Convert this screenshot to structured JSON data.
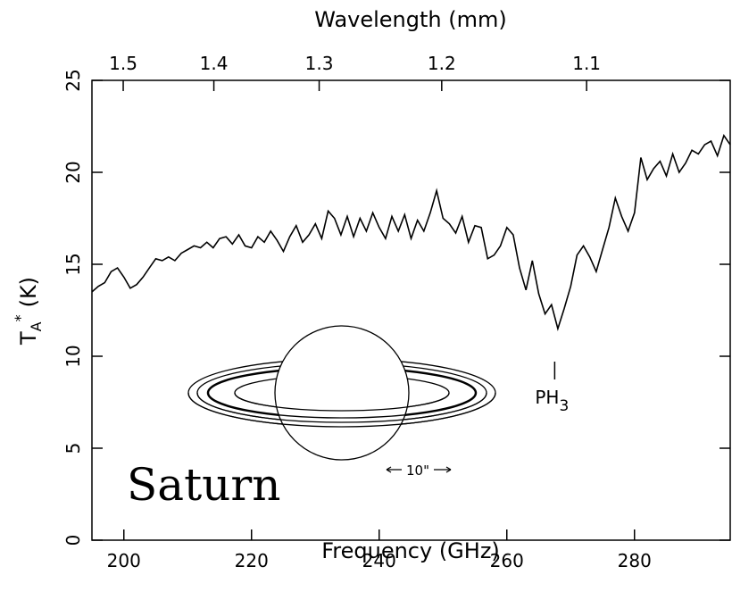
{
  "chart_data": {
    "type": "line",
    "xlabel": "Frequency (GHz)",
    "x2label": "Wavelength (mm)",
    "ylabel": {
      "text": "T",
      "sub": "A",
      "sup": "*",
      "unit": "(K)"
    },
    "color": "#000000",
    "x": [
      195,
      196,
      197,
      198,
      199,
      200,
      201,
      202,
      203,
      204,
      205,
      206,
      207,
      208,
      209,
      210,
      211,
      212,
      213,
      214,
      215,
      216,
      217,
      218,
      219,
      220,
      221,
      222,
      223,
      224,
      225,
      226,
      227,
      228,
      229,
      230,
      231,
      232,
      233,
      234,
      235,
      236,
      237,
      238,
      239,
      240,
      241,
      242,
      243,
      244,
      245,
      246,
      247,
      248,
      249,
      250,
      251,
      252,
      253,
      254,
      255,
      256,
      257,
      258,
      259,
      260,
      261,
      262,
      263,
      264,
      265,
      266,
      267,
      268,
      269,
      270,
      271,
      272,
      273,
      274,
      275,
      276,
      277,
      278,
      279,
      280,
      281,
      282,
      283,
      284,
      285,
      286,
      287,
      288,
      289,
      290,
      291,
      292,
      293,
      294,
      295
    ],
    "values": [
      13.5,
      13.8,
      14.0,
      14.6,
      14.8,
      14.3,
      13.7,
      13.9,
      14.3,
      14.8,
      15.3,
      15.2,
      15.4,
      15.2,
      15.6,
      15.8,
      16.0,
      15.9,
      16.2,
      15.9,
      16.4,
      16.5,
      16.1,
      16.6,
      16.0,
      15.9,
      16.5,
      16.2,
      16.8,
      16.3,
      15.7,
      16.5,
      17.1,
      16.2,
      16.6,
      17.2,
      16.4,
      17.9,
      17.5,
      16.6,
      17.6,
      16.5,
      17.5,
      16.8,
      17.8,
      17.0,
      16.4,
      17.6,
      16.8,
      17.7,
      16.4,
      17.4,
      16.8,
      17.8,
      19.0,
      17.5,
      17.2,
      16.7,
      17.6,
      16.2,
      17.1,
      17.0,
      15.3,
      15.5,
      16.0,
      17.0,
      16.6,
      14.8,
      13.6,
      15.2,
      13.4,
      12.3,
      12.8,
      11.5,
      12.6,
      13.8,
      15.5,
      16.0,
      15.4,
      14.6,
      15.8,
      17.0,
      18.6,
      17.6,
      16.8,
      17.8,
      20.8,
      19.6,
      20.2,
      20.6,
      19.8,
      21.0,
      20.0,
      20.5,
      21.2,
      21.0,
      21.5,
      21.7,
      20.9,
      22.0,
      21.5
    ],
    "xlim": [
      195,
      295
    ],
    "xticks": [
      200,
      220,
      240,
      260,
      280
    ],
    "x2ticks": [
      {
        "value": 199.9,
        "label": "1.5"
      },
      {
        "value": 214.1,
        "label": "1.4"
      },
      {
        "value": 230.6,
        "label": "1.3"
      },
      {
        "value": 249.8,
        "label": "1.2"
      },
      {
        "value": 272.5,
        "label": "1.1"
      }
    ],
    "ylim": [
      0,
      25
    ],
    "yticks": [
      0,
      5,
      10,
      15,
      20,
      25
    ],
    "annotations": [
      {
        "text": "PH",
        "sub": "3",
        "x": 267.5
      }
    ],
    "planet_label": "Saturn",
    "scale_label": "10\""
  }
}
